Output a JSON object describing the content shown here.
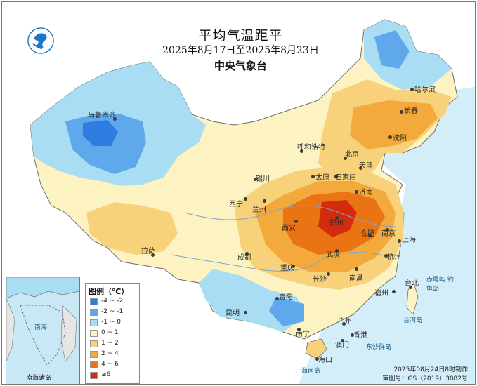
{
  "title": "平均气温距平",
  "date_range": "2025年8月17日至2025年8月23日",
  "issuer": "中央气象台",
  "legend": {
    "title": "图例（℃）",
    "items": [
      {
        "label": "-4 ~ -2",
        "color": "#2f7de1"
      },
      {
        "label": "-2 ~ -1",
        "color": "#5fa8ec"
      },
      {
        "label": "-1 ~ 0",
        "color": "#a9ddf3"
      },
      {
        "label": "0 ~ 1",
        "color": "#fdf3c2"
      },
      {
        "label": "1 ~ 2",
        "color": "#f7d27a"
      },
      {
        "label": "2 ~ 4",
        "color": "#f3a93b"
      },
      {
        "label": "4 ~ 6",
        "color": "#ea7414"
      },
      {
        "label": "≥6",
        "color": "#d62a0c"
      }
    ]
  },
  "cities": [
    {
      "id": "urumqi",
      "name": "乌鲁木齐"
    },
    {
      "id": "harbin",
      "name": "哈尔滨"
    },
    {
      "id": "changchun",
      "name": "长春"
    },
    {
      "id": "shenyang",
      "name": "沈阳"
    },
    {
      "id": "hohhot",
      "name": "呼和浩特"
    },
    {
      "id": "beijing",
      "name": "北京"
    },
    {
      "id": "tianjin",
      "name": "天津"
    },
    {
      "id": "taiyuan",
      "name": "太原"
    },
    {
      "id": "shijiazhuang",
      "name": "石家庄"
    },
    {
      "id": "yinchuan",
      "name": "银川"
    },
    {
      "id": "jinan",
      "name": "济南"
    },
    {
      "id": "xining",
      "name": "西宁"
    },
    {
      "id": "lanzhou",
      "name": "兰州"
    },
    {
      "id": "zhengzhou",
      "name": "郑州"
    },
    {
      "id": "xian",
      "name": "西安"
    },
    {
      "id": "hefei",
      "name": "合肥"
    },
    {
      "id": "nanjing",
      "name": "南京"
    },
    {
      "id": "shanghai",
      "name": "上海"
    },
    {
      "id": "lhasa",
      "name": "拉萨"
    },
    {
      "id": "chengdu",
      "name": "成都"
    },
    {
      "id": "wuhan",
      "name": "武汉"
    },
    {
      "id": "hangzhou",
      "name": "杭州"
    },
    {
      "id": "chongqing",
      "name": "重庆"
    },
    {
      "id": "changsha",
      "name": "长沙"
    },
    {
      "id": "nanchang",
      "name": "南昌"
    },
    {
      "id": "guiyang",
      "name": "贵阳"
    },
    {
      "id": "fuzhou",
      "name": "福州"
    },
    {
      "id": "taipei",
      "name": "台北"
    },
    {
      "id": "kunming",
      "name": "昆明"
    },
    {
      "id": "guangzhou",
      "name": "广州"
    },
    {
      "id": "nanning",
      "name": "南宁"
    },
    {
      "id": "hongkong",
      "name": "香港"
    },
    {
      "id": "macau",
      "name": "澳门"
    },
    {
      "id": "haikou",
      "name": "海口"
    }
  ],
  "islands": {
    "taiwan": "台湾岛",
    "hainan": "海南岛",
    "diaoyu": "赤尾屿 钓鱼岛",
    "dongsha": "东沙群岛",
    "south_sea": "南海诸岛",
    "south_sea_short": "南海"
  },
  "credit": {
    "made": "2025年08月24日8时制作",
    "approval": "审图号：GS（2019）3082号"
  },
  "logo_icon": "cma-logo-icon"
}
